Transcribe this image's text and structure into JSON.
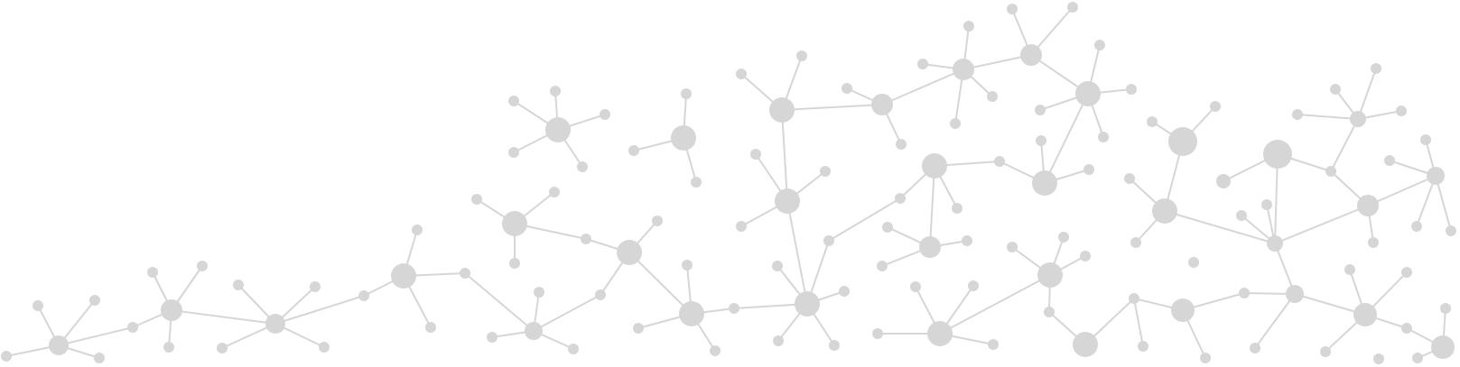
{
  "colors": {
    "node": "#d6d6d6",
    "edge": "#d6d6d6",
    "background": "#ffffff"
  }
}
